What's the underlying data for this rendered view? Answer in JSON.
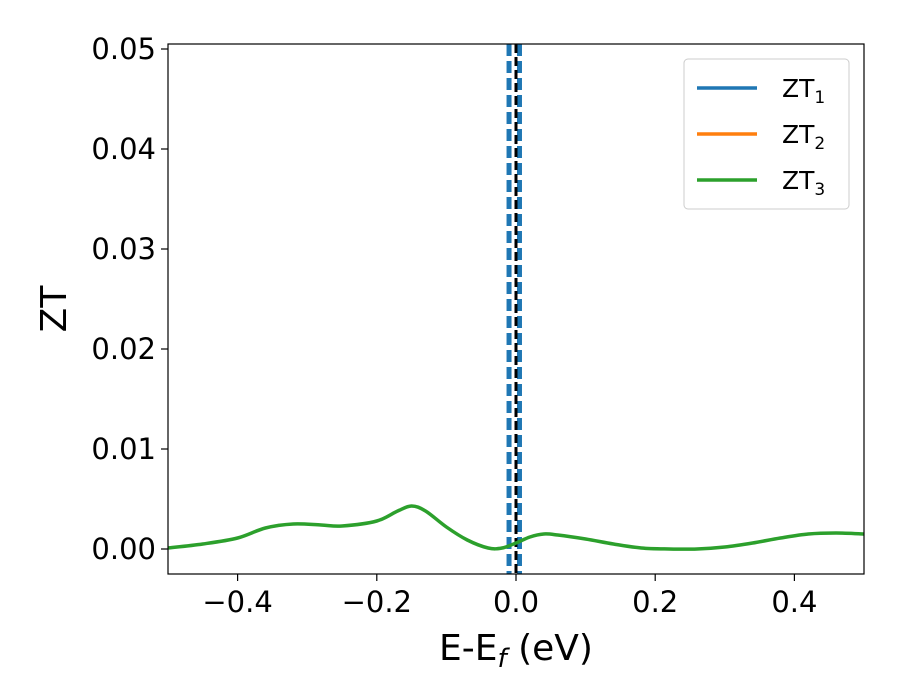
{
  "chart_data": {
    "type": "line",
    "xlabel_main": "E-E",
    "xlabel_sub": "f",
    "xlabel_unit": " (eV)",
    "ylabel": "ZT",
    "xlim": [
      -0.5,
      0.5
    ],
    "ylim": [
      -0.0025,
      0.0505
    ],
    "xticks": [
      -0.4,
      -0.2,
      0.0,
      0.2,
      0.4
    ],
    "xtick_labels": [
      "−0.4",
      "−0.2",
      "0.0",
      "0.2",
      "0.4"
    ],
    "yticks": [
      0.0,
      0.01,
      0.02,
      0.03,
      0.04,
      0.05
    ],
    "ytick_labels": [
      "0.00",
      "0.01",
      "0.02",
      "0.03",
      "0.04",
      "0.05"
    ],
    "grid": false,
    "legend_position": "top-right",
    "fermi_line": {
      "x": 0.0,
      "color": "#000000"
    },
    "series": [
      {
        "name": "ZT",
        "sub": "1",
        "color": "#1f77b4",
        "x": [
          -0.01,
          -0.01,
          0.005,
          0.005
        ],
        "y": [
          -0.0025,
          0.0505,
          0.0505,
          -0.0025
        ],
        "style": "vertical-dashed-pair"
      },
      {
        "name": "ZT",
        "sub": "2",
        "color": "#ff7f0e",
        "x": [],
        "y": [],
        "style": "hidden"
      },
      {
        "name": "ZT",
        "sub": "3",
        "color": "#2ca02c",
        "x": [
          -0.5,
          -0.45,
          -0.4,
          -0.36,
          -0.32,
          -0.28,
          -0.25,
          -0.2,
          -0.17,
          -0.15,
          -0.13,
          -0.1,
          -0.07,
          -0.04,
          -0.02,
          0.0,
          0.02,
          0.04,
          0.06,
          0.1,
          0.14,
          0.18,
          0.22,
          0.26,
          0.3,
          0.34,
          0.38,
          0.42,
          0.46,
          0.5
        ],
        "y": [
          0.0001,
          0.0005,
          0.0011,
          0.0021,
          0.0025,
          0.0024,
          0.0023,
          0.0028,
          0.0038,
          0.0043,
          0.0038,
          0.0022,
          0.0009,
          0.0001,
          0.0001,
          0.0006,
          0.0012,
          0.0015,
          0.0014,
          0.001,
          0.0005,
          0.0001,
          0.0,
          0.0,
          0.0002,
          0.0006,
          0.0011,
          0.0015,
          0.0016,
          0.0015
        ],
        "style": "solid"
      }
    ]
  }
}
